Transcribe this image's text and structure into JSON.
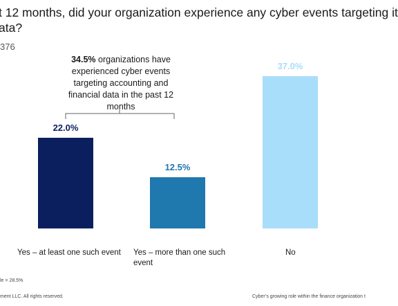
{
  "chart_data": {
    "type": "bar",
    "title": [
      "t 12 months, did your organization experience any cyber events targeting it",
      "ata?"
    ],
    "subtitle": "376",
    "annotation": {
      "highlight": "34.5%",
      "text": "organizations have experienced cyber events targeting accounting and financial data in the past 12 months"
    },
    "categories": [
      "Yes – at least one such event",
      "Yes – more than one such event",
      "No"
    ],
    "values": [
      22.0,
      12.5,
      37.0
    ],
    "value_labels": [
      "22.0%",
      "12.5%",
      "37.0%"
    ],
    "colors": [
      "#0b1f5e",
      "#1f78ae",
      "#a8defa"
    ],
    "footnote": "le = 28.5%",
    "copyright": "ment LLC. All rights reserved.",
    "footer": "Cyber’s growing role within the finance organization t"
  }
}
